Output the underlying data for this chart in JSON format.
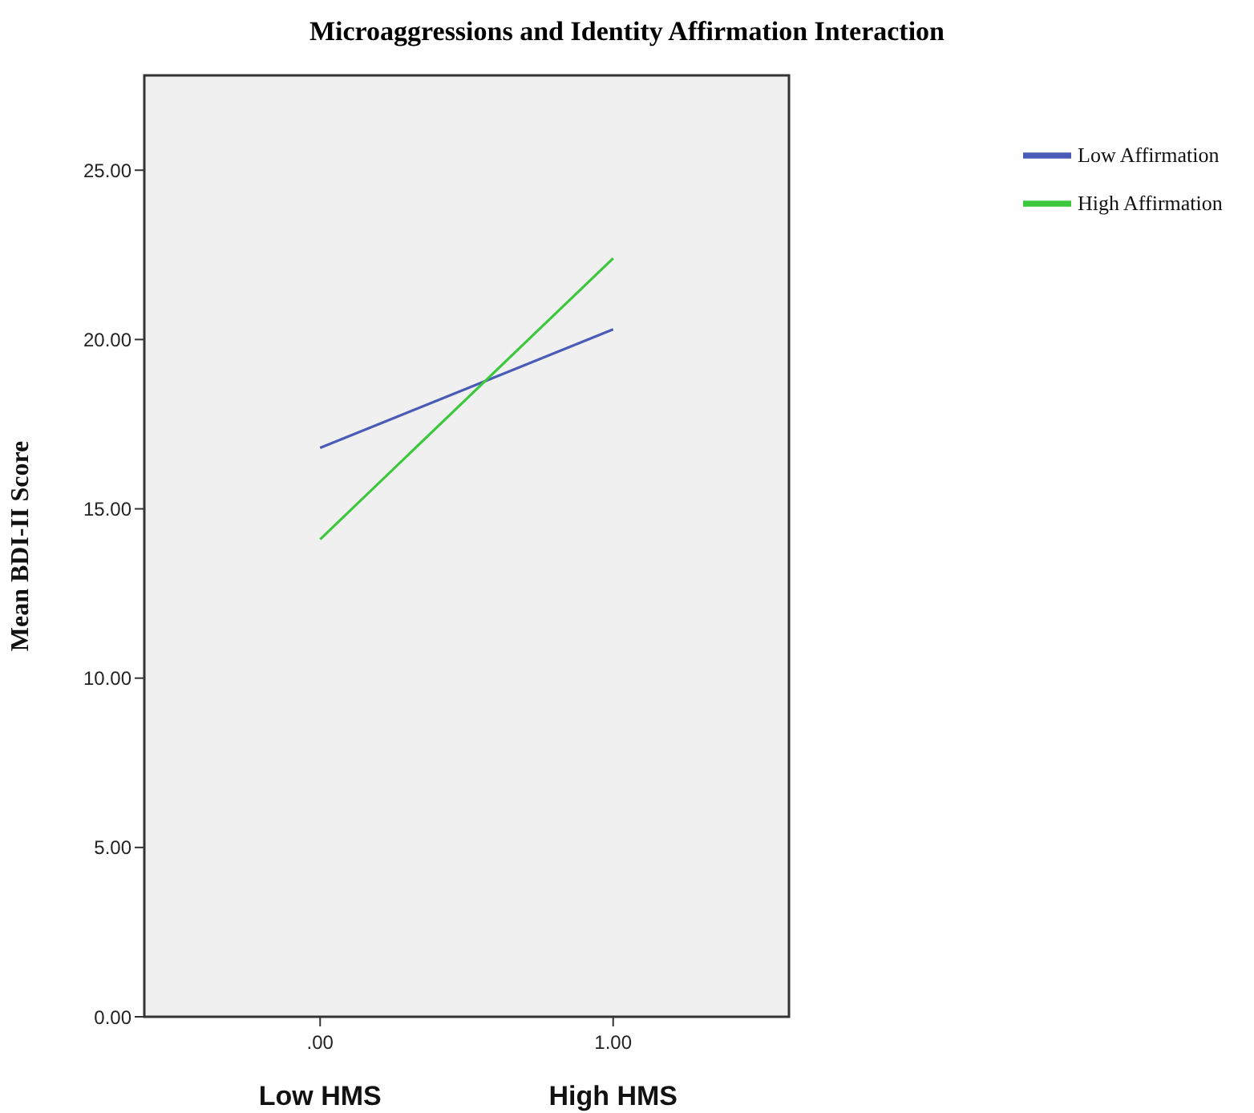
{
  "chart_data": {
    "type": "line",
    "title": "Microaggressions and Identity Affirmation Interaction",
    "ylabel": "Mean BDI-II Score",
    "x": [
      0,
      1
    ],
    "series": [
      {
        "name": "Low Affirmation",
        "color": "#4a5cb8",
        "values": [
          16.8,
          20.3
        ]
      },
      {
        "name": "High Affirmation",
        "color": "#3cc83c",
        "values": [
          14.1,
          22.4
        ]
      }
    ],
    "xlim": [
      -0.6,
      1.6
    ],
    "xticks": [
      {
        "value": 0,
        "label": ".00"
      },
      {
        "value": 1,
        "label": "1.00"
      }
    ],
    "ylim": [
      0,
      27.8
    ],
    "yticks": [
      {
        "value": 0,
        "label": "0.00"
      },
      {
        "value": 5,
        "label": "5.00"
      },
      {
        "value": 10,
        "label": "10.00"
      },
      {
        "value": 15,
        "label": "15.00"
      },
      {
        "value": 20,
        "label": "20.00"
      },
      {
        "value": 25,
        "label": "25.00"
      }
    ],
    "annotations": [
      "Low HMS",
      "High HMS"
    ],
    "legend": "top right"
  }
}
